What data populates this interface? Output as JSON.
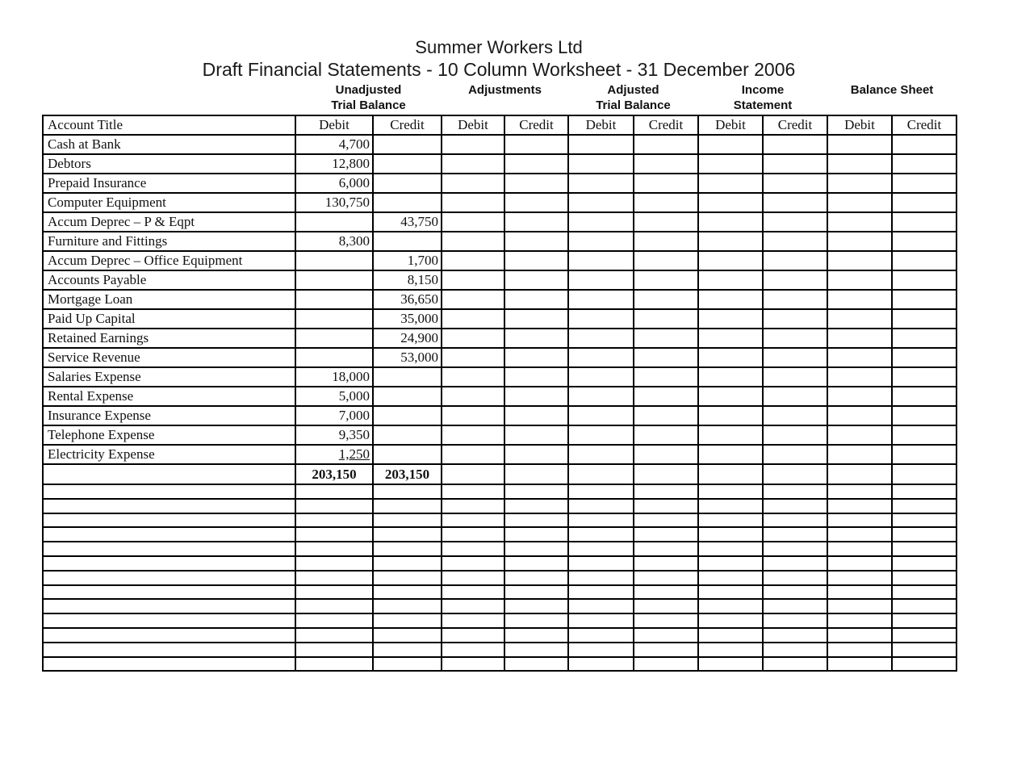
{
  "doc": {
    "title": "Summer Workers Ltd",
    "subtitle": "Draft Financial Statements - 10 Column Worksheet - 31 December 2006"
  },
  "table": {
    "account_header": "Account Title",
    "debit_label": "Debit",
    "credit_label": "Credit",
    "group_headers": [
      {
        "line1": "Unadjusted",
        "line2": "Trial Balance"
      },
      {
        "line1": "Adjustments",
        "line2": ""
      },
      {
        "line1": "Adjusted",
        "line2": "Trial Balance"
      },
      {
        "line1": "Income",
        "line2": "Statement"
      },
      {
        "line1": "Balance Sheet",
        "line2": ""
      }
    ],
    "columns": [
      "utb_d",
      "utb_c",
      "adj_d",
      "adj_c",
      "atb_d",
      "atb_c",
      "is_d",
      "is_c",
      "bs_d",
      "bs_c"
    ],
    "rows": [
      {
        "acct": "Cash at Bank",
        "utb_d": "4,700"
      },
      {
        "acct": "Debtors",
        "utb_d": "12,800"
      },
      {
        "acct": "Prepaid Insurance",
        "utb_d": "6,000"
      },
      {
        "acct": "Computer Equipment",
        "utb_d": "130,750"
      },
      {
        "acct": "Accum Deprec – P & Eqpt",
        "utb_c": "43,750"
      },
      {
        "acct": "Furniture and Fittings",
        "utb_d": "8,300"
      },
      {
        "acct": "Accum Deprec – Office Equipment",
        "utb_c": "1,700"
      },
      {
        "acct": "Accounts Payable",
        "utb_c": "8,150"
      },
      {
        "acct": "Mortgage Loan",
        "utb_c": "36,650"
      },
      {
        "acct": "Paid Up Capital",
        "utb_c": "35,000"
      },
      {
        "acct": "Retained Earnings",
        "utb_c": "24,900"
      },
      {
        "acct": "Service Revenue",
        "utb_c": "53,000"
      },
      {
        "acct": "Salaries Expense",
        "utb_d": "18,000"
      },
      {
        "acct": "Rental Expense",
        "utb_d": "5,000"
      },
      {
        "acct": "Insurance Expense",
        "utb_d": "7,000"
      },
      {
        "acct": "Telephone Expense",
        "utb_d": "9,350"
      },
      {
        "acct": "Electricity Expense",
        "utb_d": "1,250",
        "underline": true
      }
    ],
    "totals": {
      "utb_d": "203,150",
      "utb_c": "203,150"
    },
    "empty_row_count": 13,
    "colors": {
      "border": "#000000",
      "text": "#111111",
      "background": "#ffffff"
    }
  }
}
